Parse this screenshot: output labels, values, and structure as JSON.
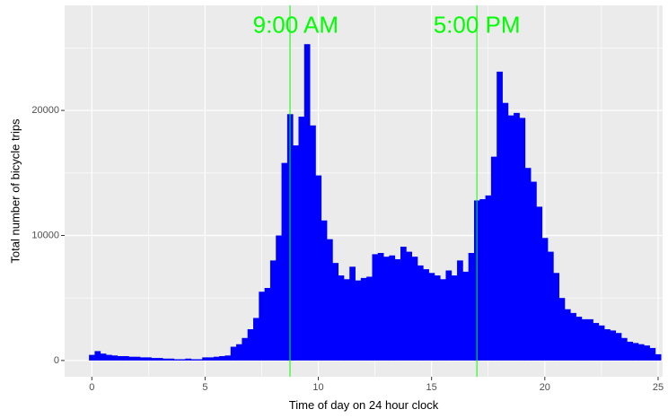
{
  "chart_data": {
    "type": "bar",
    "xlabel": "Time of day on 24 hour clock",
    "ylabel": "Total number of bicycle trips",
    "xlim": [
      -1.2,
      25.2
    ],
    "ylim": [
      -1300,
      28400
    ],
    "x_ticks": [
      0,
      5,
      10,
      15,
      20,
      25
    ],
    "x_tick_labels": [
      "0",
      "5",
      "10",
      "15",
      "20",
      "25"
    ],
    "y_ticks": [
      0,
      10000,
      20000
    ],
    "y_tick_labels": [
      "0",
      "10000",
      "20000"
    ],
    "grid": true,
    "bar_color": "#0000ff",
    "bin_start": -0.125,
    "bin_width": 0.25,
    "values": [
      450,
      750,
      550,
      450,
      400,
      350,
      350,
      300,
      300,
      250,
      250,
      200,
      200,
      150,
      150,
      100,
      100,
      150,
      100,
      100,
      250,
      250,
      300,
      350,
      400,
      1100,
      1300,
      1800,
      2500,
      3400,
      5500,
      5800,
      8000,
      10000,
      15800,
      19700,
      17200,
      19500,
      25300,
      18800,
      14800,
      11200,
      9700,
      7800,
      6800,
      6500,
      7500,
      6400,
      6600,
      6700,
      8500,
      8600,
      8300,
      8400,
      8100,
      9100,
      8700,
      8300,
      7600,
      7300,
      7000,
      6800,
      6500,
      7200,
      6800,
      8000,
      7100,
      8600,
      12800,
      12900,
      13200,
      16300,
      23100,
      20600,
      19600,
      19800,
      19400,
      15400,
      14300,
      12300,
      9800,
      8700,
      7000,
      5000,
      4100,
      3800,
      3500,
      3300,
      3300,
      3000,
      2800,
      2500,
      2400,
      2200,
      1800,
      1500,
      1400,
      1300,
      1200,
      1000,
      500
    ],
    "annotations": [
      {
        "label": "9:00 AM",
        "x": 8.75,
        "label_x": 9.0,
        "y": 26700,
        "color": "#00ff00"
      },
      {
        "label": "5:00 PM",
        "x": 17.0,
        "label_x": 17.0,
        "y": 26700,
        "color": "#00ff00"
      }
    ]
  }
}
